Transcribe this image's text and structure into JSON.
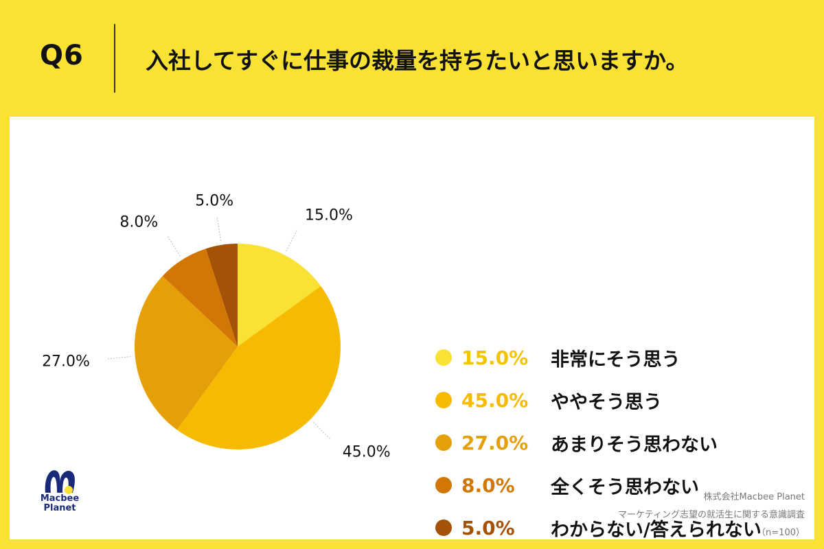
{
  "header": {
    "question_number": "Q6",
    "question_text": "入社してすぐに仕事の裁量を持ちたいと思いますか。"
  },
  "chart_data": {
    "type": "pie",
    "unit": "%",
    "slices": [
      {
        "label": "非常にそう思う",
        "value": 15.0,
        "display": "15.0%",
        "color": "#f9e233"
      },
      {
        "label": "ややそう思う",
        "value": 45.0,
        "display": "45.0%",
        "color": "#f6bb00"
      },
      {
        "label": "あまりそう思わない",
        "value": 27.0,
        "display": "27.0%",
        "color": "#e59f08"
      },
      {
        "label": "全くそう思わない",
        "value": 8.0,
        "display": "8.0%",
        "color": "#d27606"
      },
      {
        "label": "わからない/答えられない",
        "value": 5.0,
        "display": "5.0%",
        "color": "#a45306"
      }
    ],
    "start": "12 o'clock",
    "direction": "clockwise",
    "legend_position": "right"
  },
  "logo": {
    "line1": "Macbee",
    "line2": "Planet"
  },
  "credit": {
    "company": "株式会社Macbee Planet",
    "survey": "マーケティング志望の就活生に関する意識調査",
    "sample": "（n=100）"
  }
}
